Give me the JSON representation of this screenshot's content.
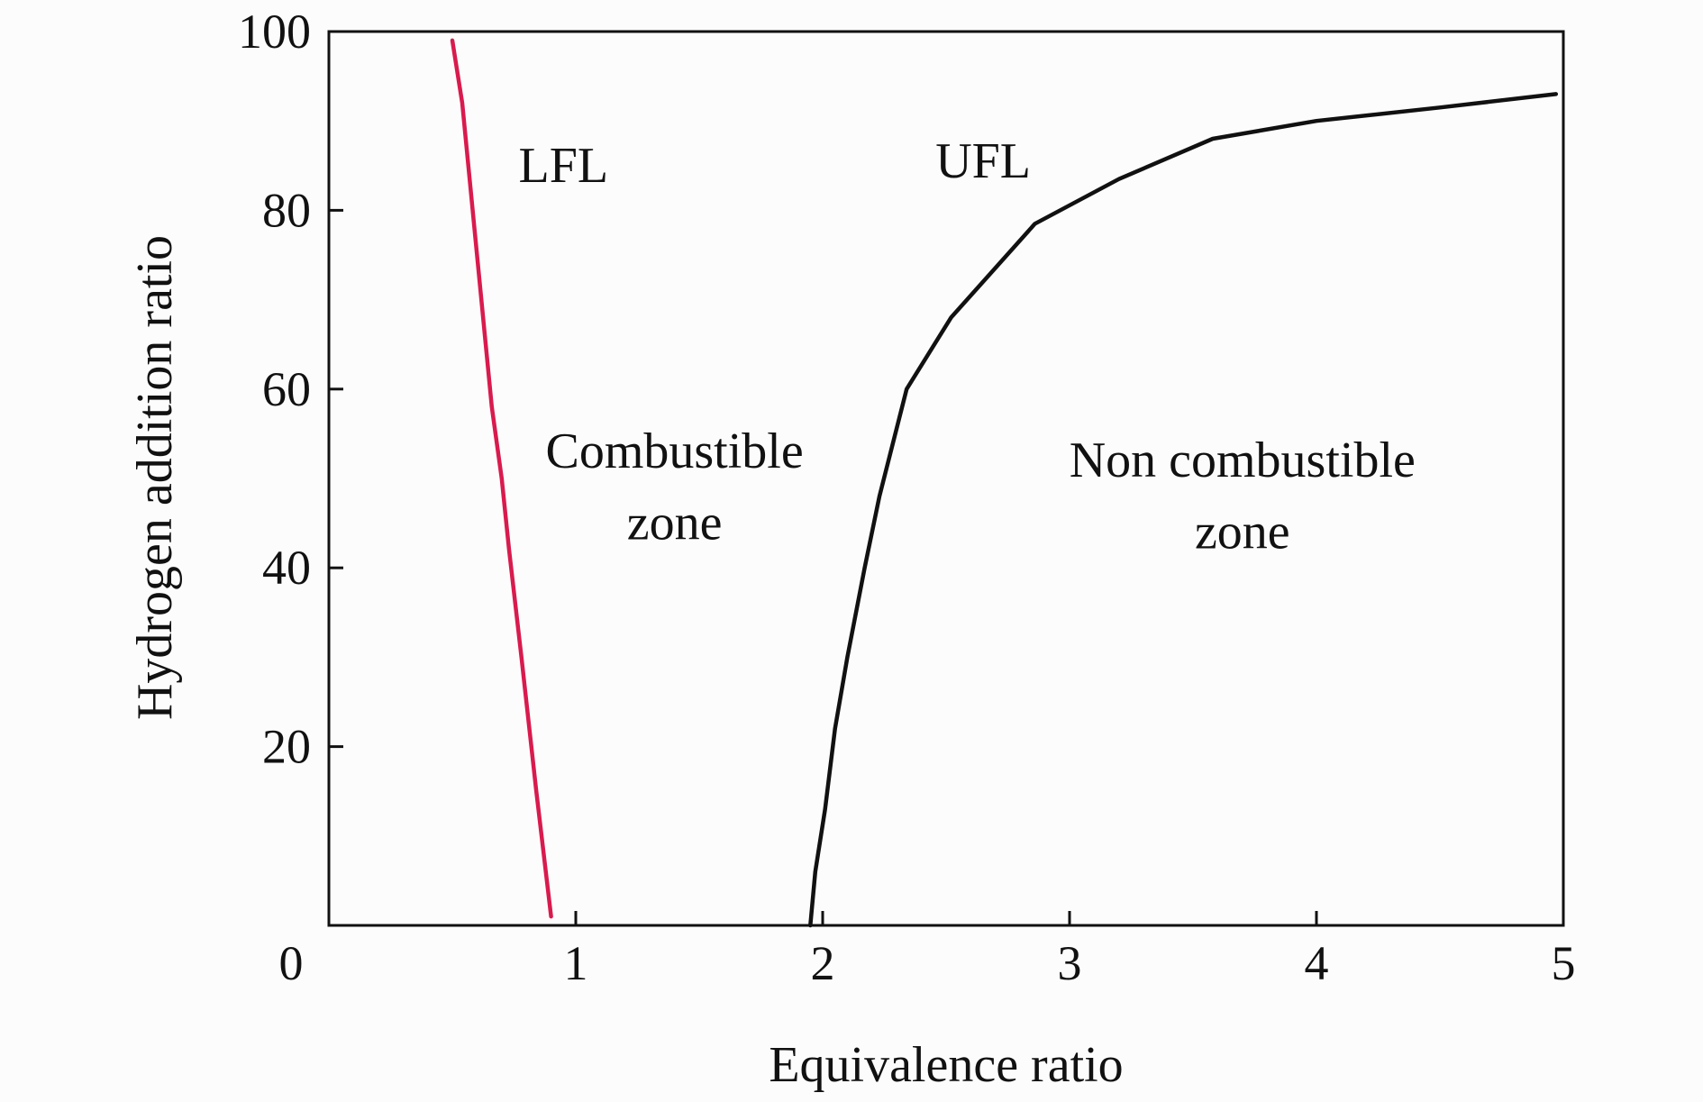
{
  "chart_data": {
    "type": "line",
    "xlabel": "Equivalence ratio",
    "ylabel": "Hydrogen addition ratio",
    "xlim": [
      0,
      5
    ],
    "ylim": [
      0,
      100
    ],
    "x_ticks": [
      0,
      1,
      2,
      3,
      4,
      5
    ],
    "y_ticks": [
      20,
      40,
      60,
      80,
      100
    ],
    "x_tick_labels": [
      "0",
      "1",
      "2",
      "3",
      "4",
      "5"
    ],
    "y_tick_labels": [
      "20",
      "40",
      "60",
      "80",
      "100"
    ],
    "grid": false,
    "legend": "none",
    "series": [
      {
        "name": "LFL",
        "color": "#d81b4e",
        "points": [
          [
            0.5,
            99
          ],
          [
            0.54,
            92
          ],
          [
            0.6,
            75
          ],
          [
            0.66,
            58
          ],
          [
            0.7,
            50
          ],
          [
            0.73,
            42
          ],
          [
            0.78,
            30
          ],
          [
            0.84,
            15
          ],
          [
            0.9,
            1
          ]
        ]
      },
      {
        "name": "UFL",
        "color": "#111111",
        "points": [
          [
            1.95,
            0
          ],
          [
            1.97,
            6
          ],
          [
            2.01,
            13
          ],
          [
            2.05,
            22
          ],
          [
            2.1,
            30
          ],
          [
            2.17,
            40
          ],
          [
            2.23,
            48
          ],
          [
            2.34,
            60
          ],
          [
            2.52,
            68
          ],
          [
            2.86,
            78.5
          ],
          [
            3.2,
            83.5
          ],
          [
            3.58,
            88
          ],
          [
            4.0,
            90
          ],
          [
            4.5,
            91.5
          ],
          [
            4.97,
            93
          ]
        ]
      }
    ],
    "annotations": [
      {
        "text": "LFL",
        "x": 0.95,
        "y": 85
      },
      {
        "text": "UFL",
        "x": 2.65,
        "y": 85.5
      },
      {
        "text": "Combustible",
        "x": 1.4,
        "y": 53
      },
      {
        "text": "zone",
        "x": 1.4,
        "y": 45
      },
      {
        "text": "Non combustible",
        "x": 3.7,
        "y": 52
      },
      {
        "text": "zone",
        "x": 3.7,
        "y": 44
      }
    ]
  }
}
